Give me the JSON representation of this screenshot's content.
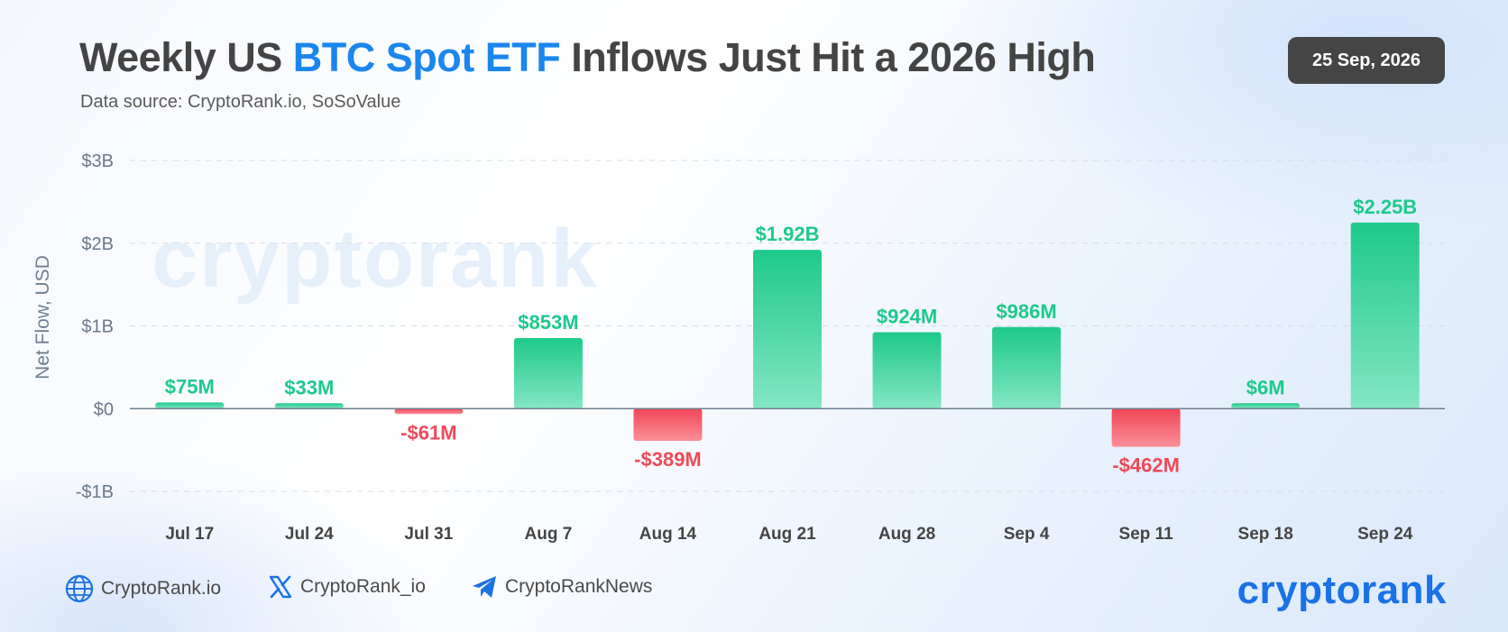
{
  "header": {
    "title_part1": "Weekly US ",
    "title_highlight": "BTC Spot ETF",
    "title_part2": " Inflows Just Hit a 2026 High",
    "subtitle": "Data source: CryptoRank.io, SoSoValue",
    "date": "25 Sep, 2026"
  },
  "colors": {
    "title_highlight": "#1a86ee",
    "positive": "#1ec98b",
    "negative": "#ee4a59",
    "badge_bg": "#454545",
    "brand": "#1a72e6"
  },
  "watermark": "cryptorank",
  "chart_data": {
    "type": "bar",
    "title": "Weekly US BTC Spot ETF Inflows Just Hit a 2026 High",
    "ylabel": "Net Flow, USD",
    "xlabel": "",
    "ylim": [
      -1000000000,
      3000000000
    ],
    "yticks": [
      3000000000,
      2000000000,
      1000000000,
      0,
      -1000000000
    ],
    "ytick_labels": [
      "$3B",
      "$2B",
      "$1B",
      "$0",
      "-$1B"
    ],
    "grid": true,
    "categories": [
      "Jul 17",
      "Jul 24",
      "Jul 31",
      "Aug 7",
      "Aug 14",
      "Aug 21",
      "Aug 28",
      "Sep 4",
      "Sep 11",
      "Sep 18",
      "Sep 24"
    ],
    "values": [
      75000000,
      33000000,
      -61000000,
      853000000,
      -389000000,
      1920000000,
      924000000,
      986000000,
      -462000000,
      6000000,
      2250000000
    ],
    "value_labels": [
      "$75M",
      "$33M",
      "-$61M",
      "$853M",
      "-$389M",
      "$1.92B",
      "$924M",
      "$986M",
      "-$462M",
      "$6M",
      "$2.25B"
    ]
  },
  "footer": {
    "website": "CryptoRank.io",
    "x_handle": "CryptoRank_io",
    "telegram": "CryptoRankNews",
    "brand": "cryptorank"
  }
}
